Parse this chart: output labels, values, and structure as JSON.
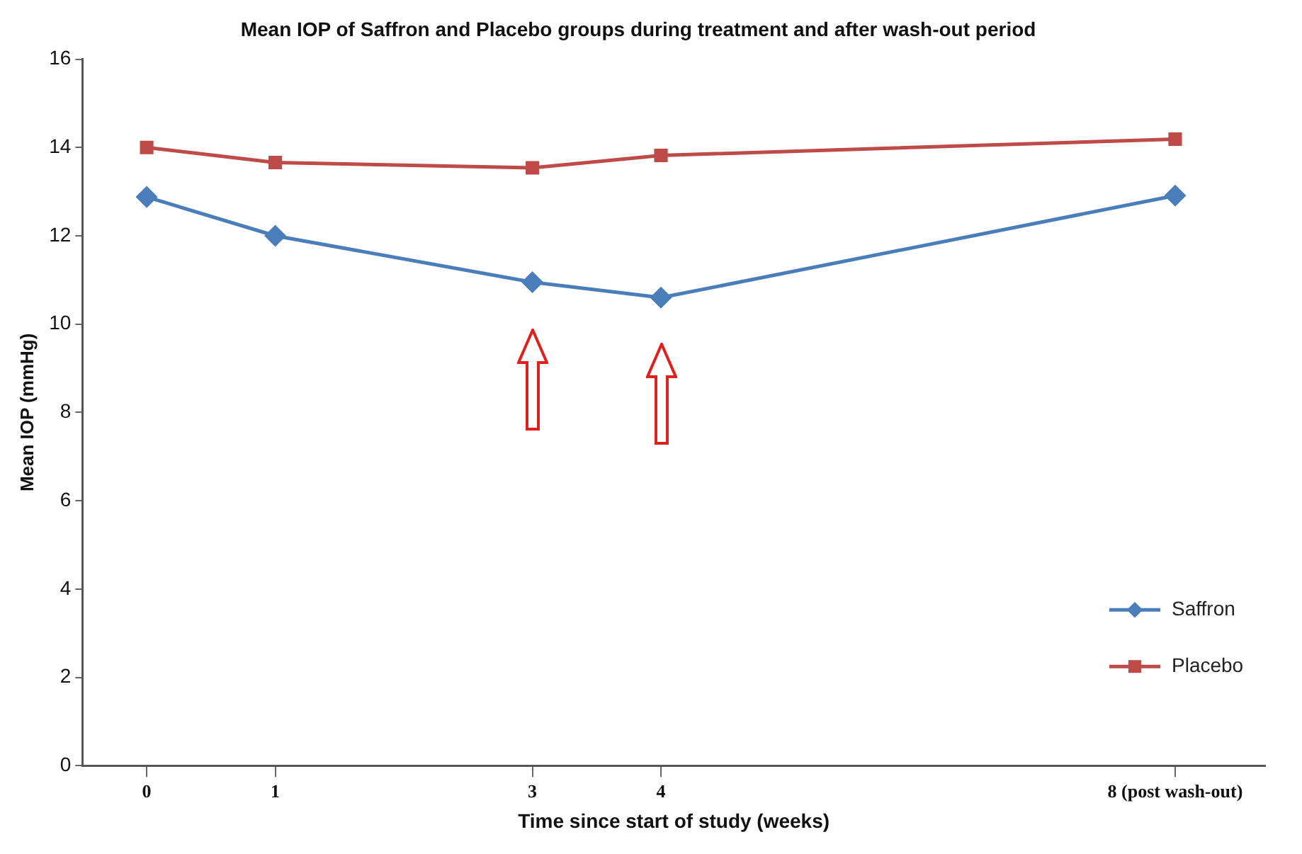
{
  "chart_data": {
    "type": "line",
    "title": "Mean IOP of Saffron and Placebo groups during treatment and after wash-out period",
    "xlabel": "Time since start of study (weeks)",
    "ylabel": "Mean IOP (mmHg)",
    "x": [
      0,
      1,
      3,
      4,
      8
    ],
    "series": [
      {
        "name": "Saffron",
        "color": "#4a7ebb",
        "marker": "diamond",
        "values": [
          12.88,
          12.0,
          10.95,
          10.6,
          12.91
        ]
      },
      {
        "name": "Placebo",
        "color": "#be4b48",
        "marker": "square",
        "values": [
          14.0,
          13.66,
          13.54,
          13.82,
          14.19
        ]
      }
    ],
    "xlim": [
      -0.5,
      8.7
    ],
    "xticks": [
      0,
      1,
      3,
      4,
      {
        "value": 8,
        "label": "8 (post wash-out)"
      }
    ],
    "ylim": [
      0,
      16
    ],
    "yticks": [
      0,
      2,
      4,
      6,
      8,
      10,
      12,
      14,
      16
    ],
    "grid": false,
    "legend": "bottom right",
    "line_style": "solid"
  }
}
